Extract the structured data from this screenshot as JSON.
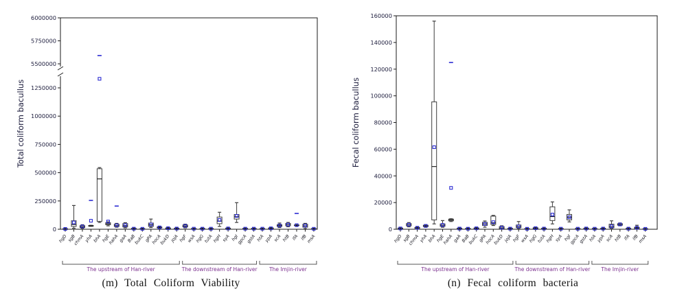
{
  "colors": {
    "marker": "#2a2ad2",
    "box_stroke": "#3c3c3c",
    "median": "#111111",
    "axis": "#1a1a1a",
    "tick_label": "#1c1c3c",
    "x_label": "#16161f",
    "group_label": "#7b2f8e",
    "caption": "#111111"
  },
  "chart_data": [
    {
      "type": "boxplot",
      "caption": "(m) Total Coliform Viability",
      "ylabel": "Total coliform bacullus",
      "axis": {
        "break_axis": true,
        "lower_ticks": [
          0,
          250000,
          500000,
          750000,
          1000000,
          1250000
        ],
        "upper_ticks": [
          5500000,
          5750000,
          6000000
        ]
      },
      "groups": [
        {
          "label": "The upstream of Han-river",
          "from": 0,
          "to": 13
        },
        {
          "label": "The downstream of Han-river",
          "from": 14,
          "to": 22
        },
        {
          "label": "The Imjin-river",
          "from": 23,
          "to": 29
        }
      ],
      "boxes": [
        {
          "label": "hgD",
          "lo": 0,
          "q1": 500,
          "med": 2000,
          "q3": 5000,
          "hi": 8000,
          "mean": 3000,
          "out": []
        },
        {
          "label": "sgB",
          "lo": 9000,
          "q1": 25000,
          "med": 42000,
          "q3": 75000,
          "hi": 210000,
          "mean": 60000,
          "out": []
        },
        {
          "label": "chmA",
          "lo": 8000,
          "q1": 15000,
          "med": 22000,
          "q3": 32000,
          "hi": 40000,
          "mean": 25000,
          "out": []
        },
        {
          "label": "yhA",
          "lo": 26000,
          "q1": 28000,
          "med": 30000,
          "q3": 33000,
          "hi": 35000,
          "mean": 75000,
          "out": [
            255000
          ]
        },
        {
          "label": "bhA",
          "lo": 60000,
          "q1": 70000,
          "med": 445000,
          "q3": 535000,
          "hi": 545000,
          "mean": 1330000,
          "out": [
            5590000
          ]
        },
        {
          "label": "hgE",
          "lo": 30000,
          "q1": 40000,
          "med": 48000,
          "q3": 58000,
          "hi": 65000,
          "mean": 68000,
          "out": []
        },
        {
          "label": "hahA",
          "lo": 18000,
          "q1": 25000,
          "med": 32000,
          "q3": 45000,
          "hi": 52000,
          "mean": 35000,
          "out": [
            205000
          ]
        },
        {
          "label": "gaA",
          "lo": 12000,
          "q1": 20000,
          "med": 32000,
          "q3": 50000,
          "hi": 58000,
          "mean": 36000,
          "out": []
        },
        {
          "label": "BaB",
          "lo": 0,
          "q1": 2000,
          "med": 4000,
          "q3": 8000,
          "hi": 12000,
          "mean": 5000,
          "out": []
        },
        {
          "label": "bukC",
          "lo": 0,
          "q1": 1000,
          "med": 3000,
          "q3": 6000,
          "hi": 9000,
          "mean": 4000,
          "out": []
        },
        {
          "label": "gPA",
          "lo": 15000,
          "q1": 25000,
          "med": 40000,
          "q3": 55000,
          "hi": 90000,
          "mean": 42000,
          "out": []
        },
        {
          "label": "hocA",
          "lo": 8000,
          "q1": 12000,
          "med": 16000,
          "q3": 20000,
          "hi": 24000,
          "mean": 16000,
          "out": []
        },
        {
          "label": "bukD",
          "lo": 3000,
          "q1": 6000,
          "med": 9000,
          "q3": 12000,
          "hi": 15000,
          "mean": 9000,
          "out": []
        },
        {
          "label": "jojA",
          "lo": 1000,
          "q1": 3000,
          "med": 6000,
          "q3": 9000,
          "hi": 12000,
          "mean": 6000,
          "out": []
        },
        {
          "label": "hgF",
          "lo": 12000,
          "q1": 20000,
          "med": 28000,
          "q3": 38000,
          "hi": 45000,
          "mean": 30000,
          "out": []
        },
        {
          "label": "wsA",
          "lo": 0,
          "q1": 2000,
          "med": 4000,
          "q3": 7000,
          "hi": 10000,
          "mean": 5000,
          "out": []
        },
        {
          "label": "hgG",
          "lo": 0,
          "q1": 2000,
          "med": 5000,
          "q3": 8000,
          "hi": 11000,
          "mean": 5000,
          "out": []
        },
        {
          "label": "tutA",
          "lo": 0,
          "q1": 2000,
          "med": 4000,
          "q3": 7000,
          "hi": 10000,
          "mean": 5000,
          "out": []
        },
        {
          "label": "hgH",
          "lo": 25000,
          "q1": 49000,
          "med": 72000,
          "q3": 108000,
          "hi": 150000,
          "mean": 82000,
          "out": []
        },
        {
          "label": "syA",
          "lo": 0,
          "q1": 3000,
          "med": 6000,
          "q3": 10000,
          "hi": 14000,
          "mean": 7000,
          "out": []
        },
        {
          "label": "hgI",
          "lo": 60000,
          "q1": 90000,
          "med": 110000,
          "q3": 130000,
          "hi": 235000,
          "mean": 118000,
          "out": []
        },
        {
          "label": "gpcA",
          "lo": 0,
          "q1": 2000,
          "med": 5000,
          "q3": 8000,
          "hi": 11000,
          "mean": 5000,
          "out": []
        },
        {
          "label": "gstA",
          "lo": 0,
          "q1": 2000,
          "med": 5000,
          "q3": 8000,
          "hi": 11000,
          "mean": 5000,
          "out": []
        },
        {
          "label": "htA",
          "lo": 0,
          "q1": 2000,
          "med": 4000,
          "q3": 7000,
          "hi": 10000,
          "mean": 5000,
          "out": []
        },
        {
          "label": "ypA",
          "lo": 2000,
          "q1": 5000,
          "med": 8000,
          "q3": 12000,
          "hi": 15000,
          "mean": 8000,
          "out": []
        },
        {
          "label": "scA",
          "lo": 15000,
          "q1": 25000,
          "med": 32000,
          "q3": 40000,
          "hi": 55000,
          "mean": 33000,
          "out": []
        },
        {
          "label": "htB",
          "lo": 22000,
          "q1": 30000,
          "med": 40000,
          "q3": 52000,
          "hi": 60000,
          "mean": 41000,
          "out": []
        },
        {
          "label": "lfA",
          "lo": 30000,
          "q1": 32000,
          "med": 35000,
          "q3": 38000,
          "hi": 40000,
          "mean": 36000,
          "out": [
            140000
          ]
        },
        {
          "label": "lfB",
          "lo": 5000,
          "q1": 18000,
          "med": 30000,
          "q3": 45000,
          "hi": 52000,
          "mean": 32000,
          "out": []
        },
        {
          "label": "msA",
          "lo": 0,
          "q1": 1000,
          "med": 3000,
          "q3": 6000,
          "hi": 9000,
          "mean": 4000,
          "out": []
        }
      ]
    },
    {
      "type": "boxplot",
      "caption": "(n) Fecal coliform bacteria",
      "ylabel": "Fecal coliform bacullus",
      "axis": {
        "break_axis": false,
        "lower_ticks": [
          0,
          20000,
          40000,
          60000,
          80000,
          100000,
          120000,
          140000,
          160000
        ]
      },
      "groups": [
        {
          "label": "The upstream of Han-river",
          "from": 0,
          "to": 13
        },
        {
          "label": "The downstream of Han-river",
          "from": 14,
          "to": 22
        },
        {
          "label": "The Imjin-river",
          "from": 23,
          "to": 29
        }
      ],
      "boxes": [
        {
          "label": "hgD",
          "lo": 0,
          "q1": 200,
          "med": 500,
          "q3": 900,
          "hi": 1400,
          "mean": 600,
          "out": []
        },
        {
          "label": "sgB",
          "lo": 1800,
          "q1": 2500,
          "med": 3300,
          "q3": 4300,
          "hi": 5000,
          "mean": 3400,
          "out": []
        },
        {
          "label": "chmA",
          "lo": 400,
          "q1": 700,
          "med": 1000,
          "q3": 1400,
          "hi": 1800,
          "mean": 1100,
          "out": []
        },
        {
          "label": "yhA",
          "lo": 1500,
          "q1": 2000,
          "med": 2500,
          "q3": 3000,
          "hi": 3500,
          "mean": 2500,
          "out": []
        },
        {
          "label": "bhA",
          "lo": 4000,
          "q1": 7000,
          "med": 47000,
          "q3": 95500,
          "hi": 156000,
          "mean": 61500,
          "out": []
        },
        {
          "label": "hgE",
          "lo": 1500,
          "q1": 2200,
          "med": 3000,
          "q3": 4000,
          "hi": 6500,
          "mean": 3200,
          "out": []
        },
        {
          "label": "hahA",
          "lo": 5800,
          "q1": 6300,
          "med": 7000,
          "q3": 7600,
          "hi": 7900,
          "mean": 31000,
          "out": [
            125000
          ]
        },
        {
          "label": "gaA",
          "lo": 0,
          "q1": 200,
          "med": 500,
          "q3": 800,
          "hi": 1200,
          "mean": 500,
          "out": []
        },
        {
          "label": "BaB",
          "lo": 0,
          "q1": 200,
          "med": 400,
          "q3": 700,
          "hi": 1000,
          "mean": 400,
          "out": []
        },
        {
          "label": "bukC",
          "lo": 200,
          "q1": 400,
          "med": 700,
          "q3": 1000,
          "hi": 1300,
          "mean": 700,
          "out": []
        },
        {
          "label": "gPA",
          "lo": 1500,
          "q1": 2800,
          "med": 4000,
          "q3": 5200,
          "hi": 6200,
          "mean": 4000,
          "out": []
        },
        {
          "label": "hocA",
          "lo": 2800,
          "q1": 3600,
          "med": 4800,
          "q3": 9800,
          "hi": 10400,
          "mean": 5300,
          "out": []
        },
        {
          "label": "bukD",
          "lo": 0,
          "q1": 400,
          "med": 1000,
          "q3": 2000,
          "hi": 2600,
          "mean": 1200,
          "out": []
        },
        {
          "label": "jojA",
          "lo": 0,
          "q1": 200,
          "med": 400,
          "q3": 700,
          "hi": 1000,
          "mean": 450,
          "out": []
        },
        {
          "label": "hgF",
          "lo": 400,
          "q1": 1200,
          "med": 2000,
          "q3": 3200,
          "hi": 5800,
          "mean": 2100,
          "out": []
        },
        {
          "label": "wsA",
          "lo": 0,
          "q1": 150,
          "med": 300,
          "q3": 550,
          "hi": 800,
          "mean": 350,
          "out": []
        },
        {
          "label": "hgG",
          "lo": 200,
          "q1": 450,
          "med": 800,
          "q3": 1150,
          "hi": 1500,
          "mean": 800,
          "out": []
        },
        {
          "label": "tutA",
          "lo": 0,
          "q1": 200,
          "med": 450,
          "q3": 750,
          "hi": 1050,
          "mean": 500,
          "out": []
        },
        {
          "label": "hgH",
          "lo": 4000,
          "q1": 6500,
          "med": 9500,
          "q3": 16800,
          "hi": 20500,
          "mean": 11000,
          "out": []
        },
        {
          "label": "syA",
          "lo": 0,
          "q1": 150,
          "med": 350,
          "q3": 600,
          "hi": 850,
          "mean": 400,
          "out": []
        },
        {
          "label": "hgI",
          "lo": 5500,
          "q1": 7000,
          "med": 9000,
          "q3": 11100,
          "hi": 14500,
          "mean": 9000,
          "out": []
        },
        {
          "label": "gpcA",
          "lo": 0,
          "q1": 150,
          "med": 350,
          "q3": 600,
          "hi": 850,
          "mean": 400,
          "out": []
        },
        {
          "label": "gstA",
          "lo": 100,
          "q1": 300,
          "med": 550,
          "q3": 850,
          "hi": 1150,
          "mean": 550,
          "out": []
        },
        {
          "label": "htA",
          "lo": 0,
          "q1": 150,
          "med": 350,
          "q3": 600,
          "hi": 850,
          "mean": 400,
          "out": []
        },
        {
          "label": "ypA",
          "lo": 0,
          "q1": 200,
          "med": 450,
          "q3": 750,
          "hi": 1050,
          "mean": 500,
          "out": []
        },
        {
          "label": "scA",
          "lo": 700,
          "q1": 1100,
          "med": 2000,
          "q3": 3800,
          "hi": 6300,
          "mean": 2200,
          "out": []
        },
        {
          "label": "htB",
          "lo": 2600,
          "q1": 3000,
          "med": 3500,
          "q3": 4200,
          "hi": 4700,
          "mean": 3600,
          "out": []
        },
        {
          "label": "lfA",
          "lo": 0,
          "q1": 200,
          "med": 400,
          "q3": 700,
          "hi": 1000,
          "mean": 450,
          "out": []
        },
        {
          "label": "lfB",
          "lo": 300,
          "q1": 600,
          "med": 1000,
          "q3": 1500,
          "hi": 3000,
          "mean": 1100,
          "out": []
        },
        {
          "label": "msA",
          "lo": 0,
          "q1": 100,
          "med": 250,
          "q3": 450,
          "hi": 650,
          "mean": 300,
          "out": []
        }
      ]
    }
  ]
}
